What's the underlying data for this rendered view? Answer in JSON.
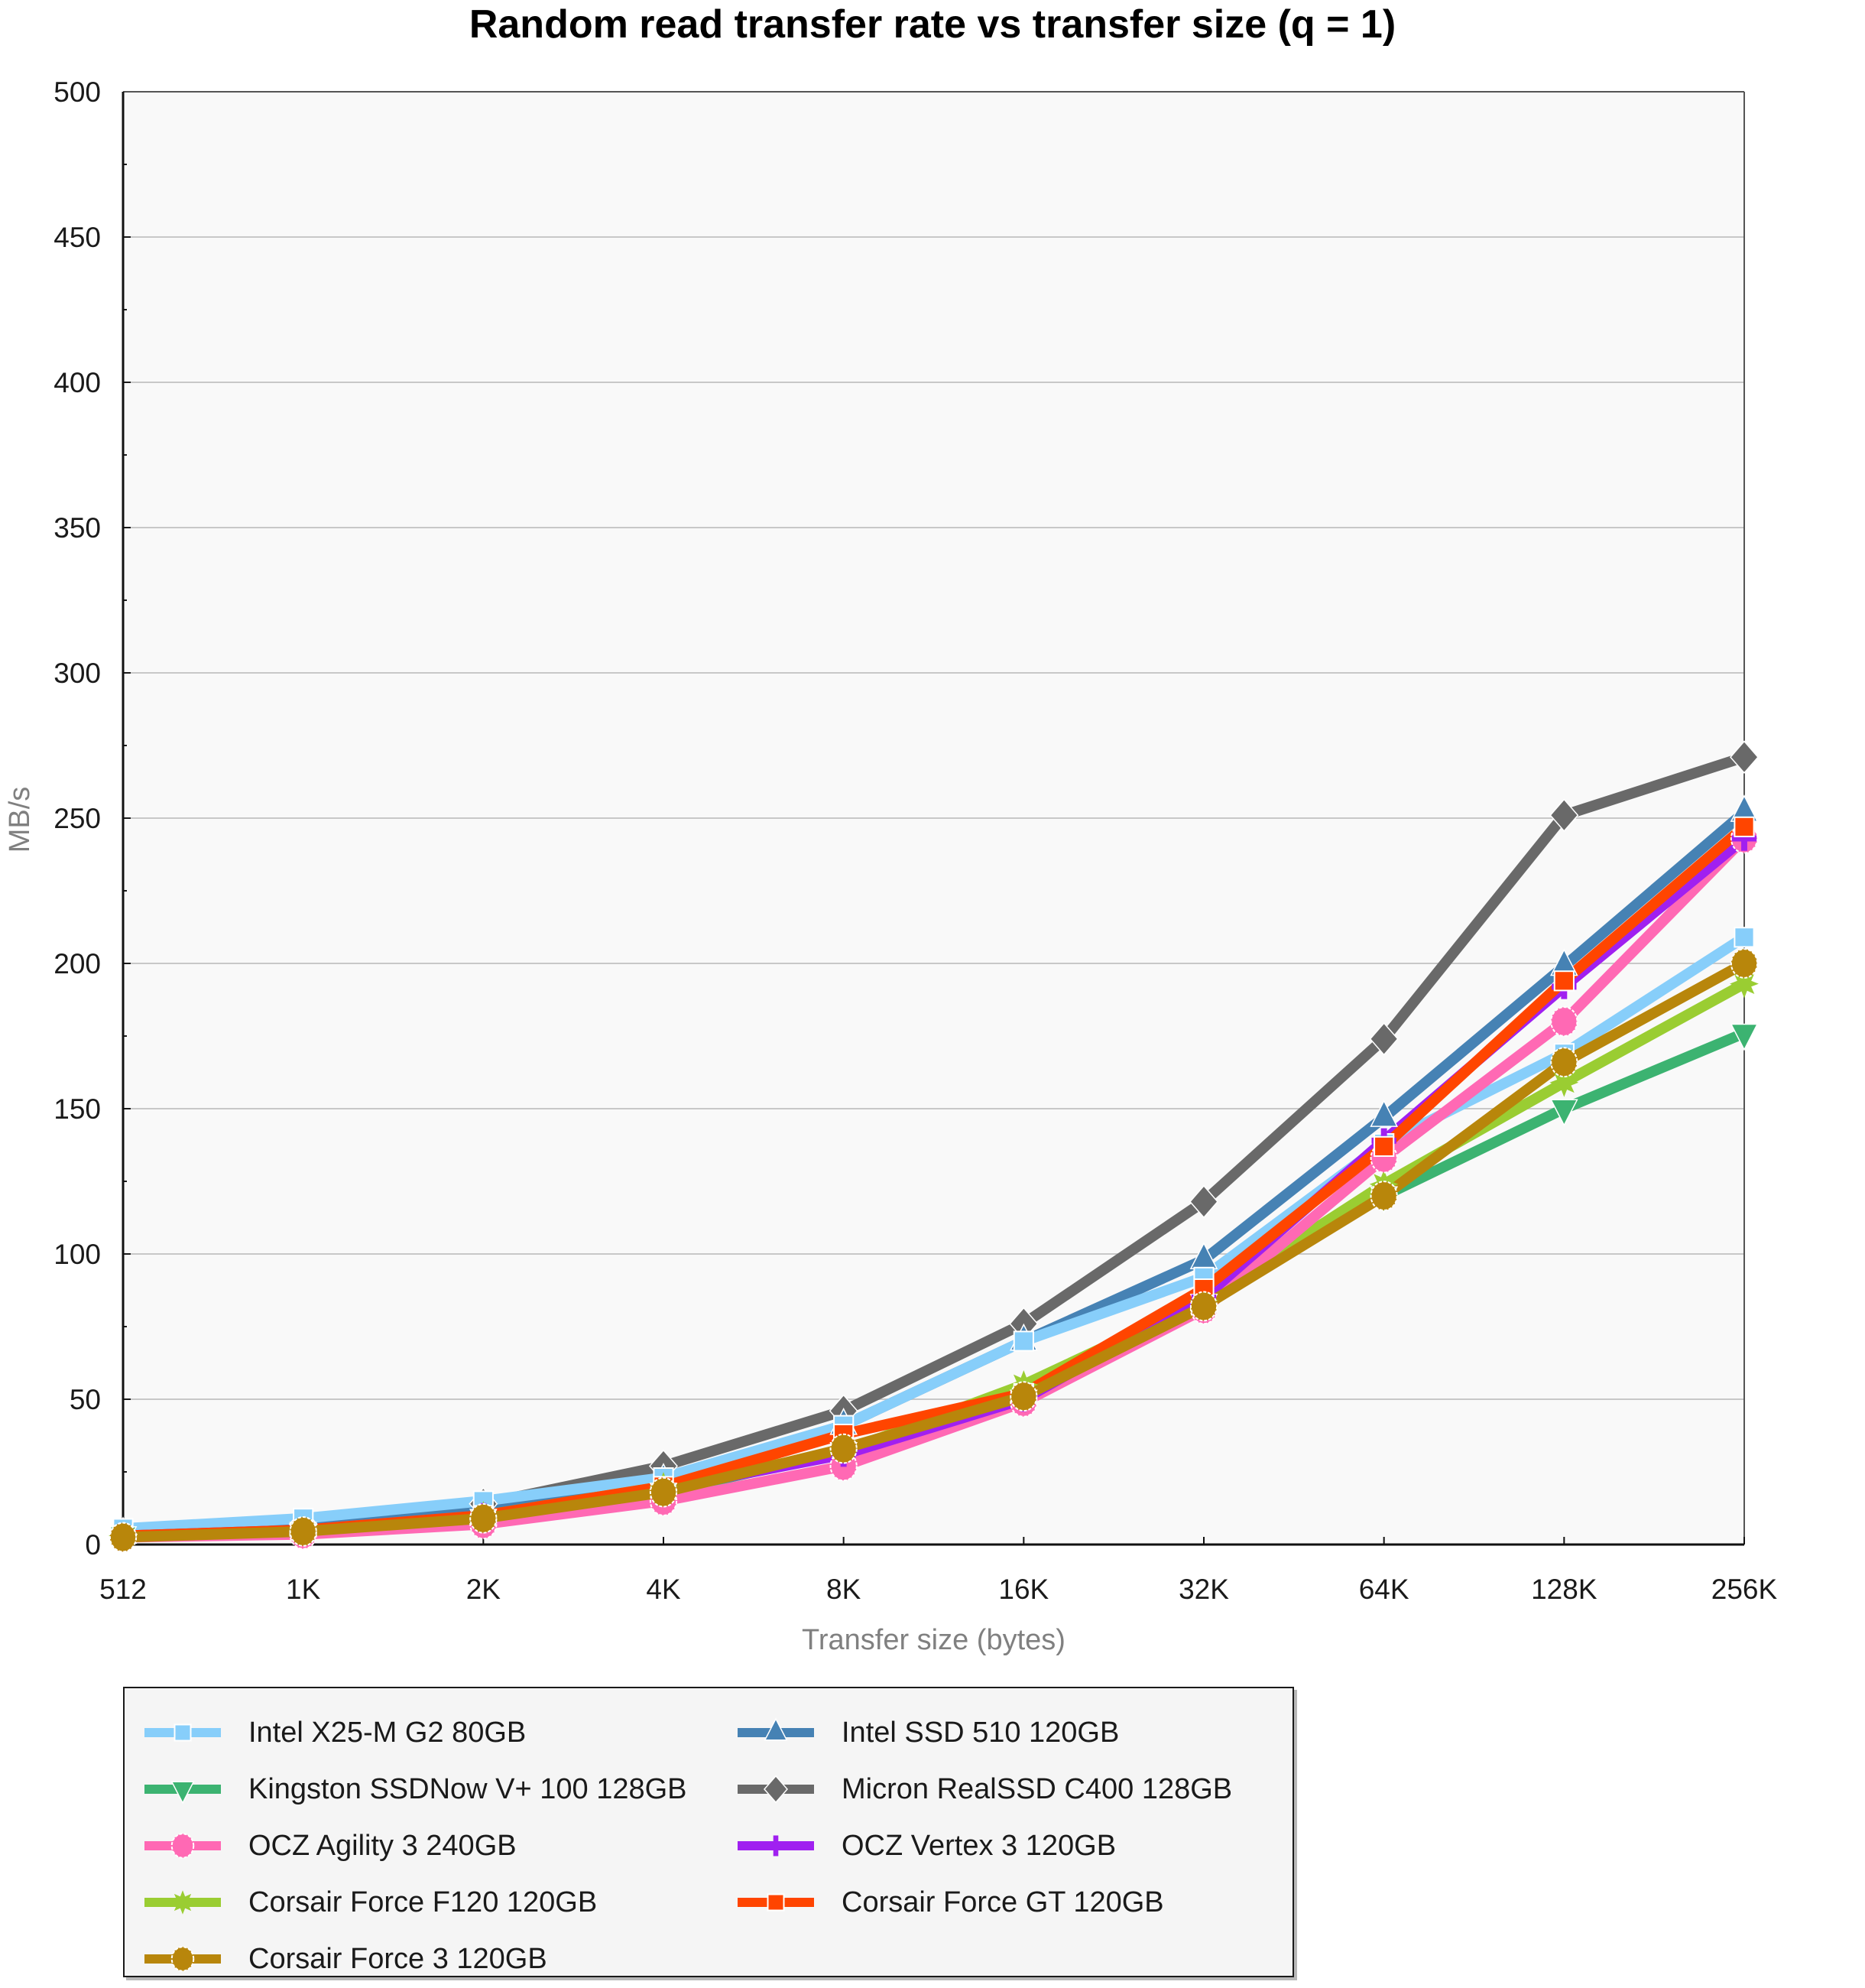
{
  "chart_data": {
    "type": "line",
    "title": "Random read transfer rate vs transfer size (q = 1)",
    "xlabel": "Transfer size (bytes)",
    "ylabel": "MB/s",
    "categories": [
      "512",
      "1K",
      "2K",
      "4K",
      "8K",
      "16K",
      "32K",
      "64K",
      "128K",
      "256K"
    ],
    "ylim": [
      0,
      500
    ],
    "yticks": [
      0,
      50,
      100,
      150,
      200,
      250,
      300,
      350,
      400,
      450,
      500
    ],
    "grid": true,
    "legend_position": "bottom-left",
    "series": [
      {
        "name": "Intel X25-M G2 80GB",
        "color": "#87CEFA",
        "marker": "square",
        "values": [
          5.5,
          9,
          15,
          23,
          41,
          70,
          92,
          138,
          169,
          209
        ]
      },
      {
        "name": "Kingston SSDNow V+ 100 128GB",
        "color": "#3CB371",
        "marker": "triangle-down",
        "values": [
          3,
          4.5,
          9,
          18,
          32,
          50,
          83,
          120,
          150,
          176
        ]
      },
      {
        "name": "OCZ Agility 3 240GB",
        "color": "#FF69B4",
        "marker": "circle",
        "values": [
          2.5,
          3.5,
          7,
          15,
          27,
          49,
          81,
          133,
          180,
          243
        ]
      },
      {
        "name": "Corsair Force F120 120GB",
        "color": "#9ACD32",
        "marker": "star",
        "values": [
          3,
          5,
          10,
          20,
          32,
          55,
          84,
          124,
          159,
          193
        ]
      },
      {
        "name": "Corsair Force 3 120GB",
        "color": "#B8860B",
        "marker": "circle",
        "values": [
          2.5,
          4.5,
          9,
          18,
          33,
          51,
          82,
          120,
          166,
          200
        ]
      },
      {
        "name": "Intel SSD 510 120GB",
        "color": "#4682B4",
        "marker": "triangle-up",
        "values": [
          3.5,
          6,
          12,
          22,
          41,
          70,
          98,
          147,
          199,
          252
        ]
      },
      {
        "name": "Micron RealSSD C400 128GB",
        "color": "#696969",
        "marker": "diamond",
        "values": [
          3.5,
          7,
          14,
          27,
          46,
          76,
          118,
          174,
          251,
          271
        ]
      },
      {
        "name": "OCZ Vertex 3 120GB",
        "color": "#A020F0",
        "marker": "plus",
        "values": [
          3,
          5,
          10,
          19,
          31,
          50,
          85,
          139,
          192,
          243
        ]
      },
      {
        "name": "Corsair Force GT 120GB",
        "color": "#FF4500",
        "marker": "square",
        "values": [
          3,
          5,
          10,
          20,
          38,
          52,
          88,
          137,
          194,
          247
        ]
      }
    ],
    "draw_order": [
      6,
      5,
      0,
      1,
      3,
      2,
      7,
      8,
      4
    ],
    "legend_columns": [
      [
        0,
        1,
        2,
        3,
        4
      ],
      [
        5,
        6,
        7,
        8
      ]
    ]
  }
}
